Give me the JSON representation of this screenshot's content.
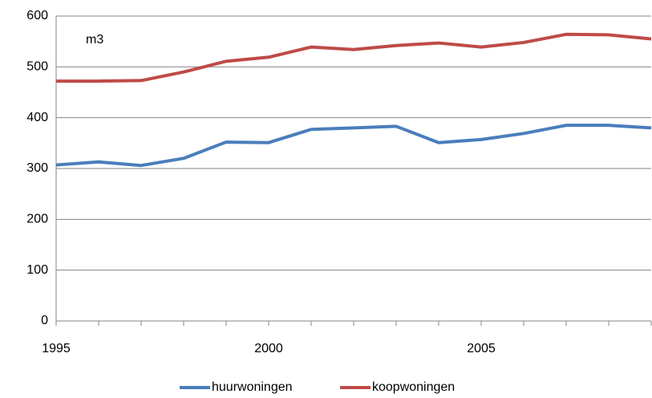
{
  "chart_data": {
    "type": "line",
    "annotation": "m3",
    "x": [
      1995,
      1996,
      1997,
      1998,
      1999,
      2000,
      2001,
      2002,
      2003,
      2004,
      2005,
      2006,
      2007,
      2008,
      2009
    ],
    "series": [
      {
        "name": "huurwoningen",
        "color": "#4a7ebb",
        "values": [
          307,
          313,
          306,
          320,
          352,
          351,
          377,
          380,
          383,
          351,
          357,
          369,
          385,
          385,
          380
        ]
      },
      {
        "name": "koopwoningen",
        "color": "#be4b48",
        "values": [
          472,
          472,
          473,
          490,
          511,
          519,
          539,
          534,
          542,
          547,
          539,
          548,
          564,
          563,
          555
        ]
      }
    ],
    "xlim": [
      1995,
      2009
    ],
    "xticks": [
      1995,
      2000,
      2005
    ],
    "ylim": [
      0,
      600
    ],
    "yticks": [
      0,
      100,
      200,
      300,
      400,
      500,
      600
    ],
    "grid": true
  }
}
